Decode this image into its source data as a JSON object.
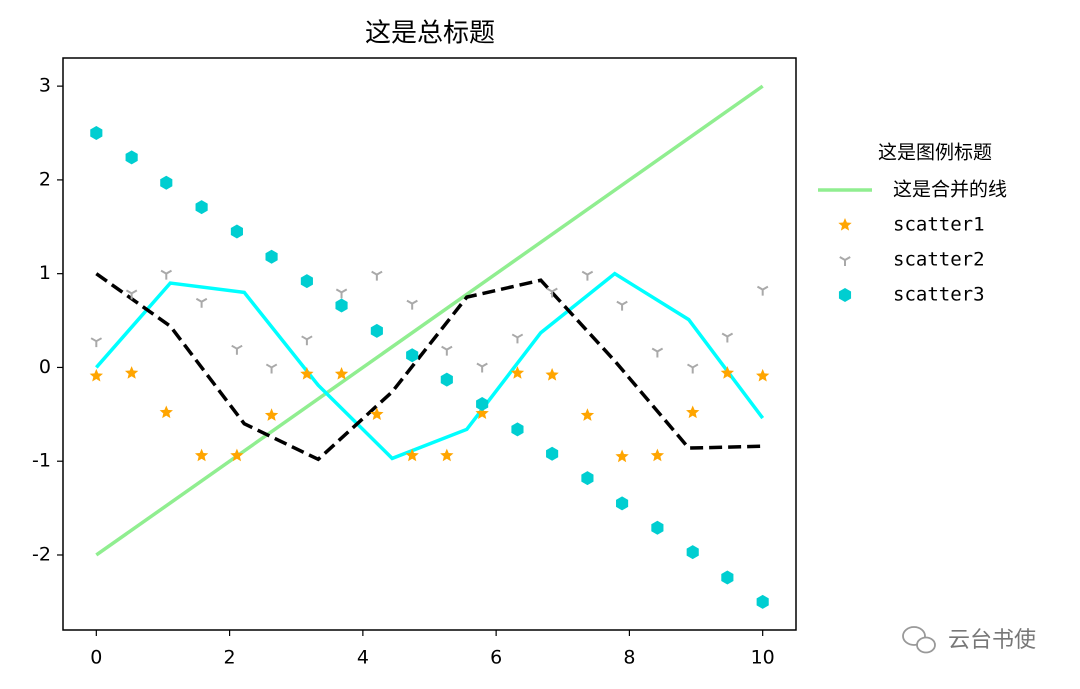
{
  "chart_data": {
    "type": "line",
    "title": "这是总标题",
    "xlim": [
      -0.5,
      10.5
    ],
    "ylim": [
      -2.8,
      3.3
    ],
    "xticks": [
      0,
      2,
      4,
      6,
      8,
      10
    ],
    "yticks": [
      -2,
      -1,
      0,
      1,
      2,
      3
    ],
    "legend_title": "这是图例标题",
    "legend": "outside right",
    "watermark": "云台书使",
    "series": [
      {
        "name": "这是合并的线",
        "kind": "line",
        "color": "#90ee90",
        "x": [
          0,
          10
        ],
        "values": [
          -2,
          3
        ]
      },
      {
        "kind": "line",
        "color": "#00ffff",
        "x": [
          0,
          1.11,
          2.22,
          3.33,
          4.44,
          5.56,
          6.67,
          7.78,
          8.89,
          10
        ],
        "values": [
          0,
          0.9,
          0.8,
          -0.19,
          -0.97,
          -0.66,
          0.37,
          1.0,
          0.51,
          -0.54
        ]
      },
      {
        "kind": "line",
        "linestyle": "dashed",
        "color": "#000000",
        "x": [
          0,
          1.11,
          2.22,
          3.33,
          4.44,
          5.56,
          6.67,
          7.78,
          8.89,
          10
        ],
        "values": [
          1,
          0.44,
          -0.6,
          -0.98,
          -0.26,
          0.75,
          0.93,
          0.07,
          -0.86,
          -0.84
        ]
      },
      {
        "name": "scatter1",
        "kind": "scatter",
        "marker": "star",
        "color": "#ffa500",
        "x": [
          0,
          0.53,
          1.05,
          1.58,
          2.11,
          2.63,
          3.16,
          3.68,
          4.21,
          4.74,
          5.26,
          5.79,
          6.32,
          6.84,
          7.37,
          7.89,
          8.42,
          8.95,
          9.47,
          10
        ],
        "values": [
          -0.09,
          -0.06,
          -0.48,
          -0.94,
          -0.94,
          -0.51,
          -0.07,
          -0.07,
          -0.5,
          -0.94,
          -0.94,
          -0.49,
          -0.06,
          -0.08,
          -0.51,
          -0.95,
          -0.94,
          -0.48,
          -0.06,
          -0.09
        ]
      },
      {
        "name": "scatter2",
        "kind": "scatter",
        "marker": "tri_down",
        "color": "#a9a9a9",
        "x": [
          0,
          0.53,
          1.05,
          1.58,
          2.11,
          2.63,
          3.16,
          3.68,
          4.21,
          4.74,
          5.26,
          5.79,
          6.32,
          6.84,
          7.37,
          7.89,
          8.42,
          8.95,
          9.47,
          10
        ],
        "values": [
          0.28,
          0.79,
          1.0,
          0.7,
          0.2,
          0.0,
          0.3,
          0.8,
          0.99,
          0.68,
          0.19,
          0.01,
          0.32,
          0.81,
          0.99,
          0.67,
          0.17,
          0.0,
          0.33,
          0.83
        ]
      },
      {
        "name": "scatter3",
        "kind": "scatter",
        "marker": "hexagon",
        "color": "#00ced1",
        "x": [
          0,
          0.53,
          1.05,
          1.58,
          2.11,
          2.63,
          3.16,
          3.68,
          4.21,
          4.74,
          5.26,
          5.79,
          6.32,
          6.84,
          7.37,
          7.89,
          8.42,
          8.95,
          9.47,
          10
        ],
        "values": [
          2.5,
          2.24,
          1.97,
          1.71,
          1.45,
          1.18,
          0.92,
          0.66,
          0.39,
          0.13,
          -0.13,
          -0.39,
          -0.66,
          -0.92,
          -1.18,
          -1.45,
          -1.71,
          -1.97,
          -2.24,
          -2.5
        ]
      }
    ]
  }
}
